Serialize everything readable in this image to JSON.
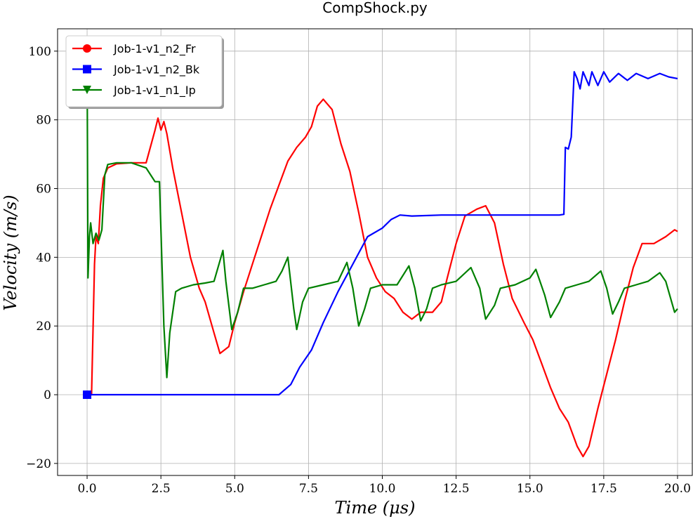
{
  "chart_data": {
    "type": "line",
    "title": "CompShock.py",
    "xlabel": "Time (μs)",
    "ylabel": "Velocity (m/s)",
    "xlim": [
      -1.0,
      20.5
    ],
    "ylim": [
      -23.5,
      106.5
    ],
    "xticks": [
      0.0,
      2.5,
      5.0,
      7.5,
      10.0,
      12.5,
      15.0,
      17.5,
      20.0
    ],
    "xtick_labels": [
      "0.0",
      "2.5",
      "5.0",
      "7.5",
      "10.0",
      "12.5",
      "15.0",
      "17.5",
      "20.0"
    ],
    "yticks": [
      -20,
      0,
      20,
      40,
      60,
      80,
      100
    ],
    "ytick_labels": [
      "−20",
      "0",
      "20",
      "40",
      "60",
      "80",
      "100"
    ],
    "grid": true,
    "legend_position": "top-left",
    "series": [
      {
        "name": "Job-1-v1_n2_Fr",
        "color": "#ff0000",
        "marker": "circle",
        "points": [
          [
            0,
            0
          ],
          [
            0.15,
            0
          ],
          [
            0.25,
            38
          ],
          [
            0.3,
            46
          ],
          [
            0.38,
            44
          ],
          [
            0.45,
            55
          ],
          [
            0.55,
            63
          ],
          [
            0.7,
            66
          ],
          [
            1.0,
            67.2
          ],
          [
            1.5,
            67.5
          ],
          [
            2.0,
            67.5
          ],
          [
            2.3,
            77
          ],
          [
            2.4,
            80.5
          ],
          [
            2.5,
            77
          ],
          [
            2.6,
            79.5
          ],
          [
            2.7,
            76
          ],
          [
            2.9,
            66
          ],
          [
            3.2,
            53
          ],
          [
            3.5,
            40
          ],
          [
            3.8,
            31
          ],
          [
            4.0,
            27
          ],
          [
            4.3,
            18
          ],
          [
            4.5,
            12
          ],
          [
            4.8,
            14
          ],
          [
            5.0,
            21
          ],
          [
            5.3,
            30
          ],
          [
            5.6,
            38
          ],
          [
            5.9,
            46
          ],
          [
            6.2,
            54
          ],
          [
            6.5,
            61
          ],
          [
            6.8,
            68
          ],
          [
            7.1,
            72
          ],
          [
            7.4,
            75
          ],
          [
            7.6,
            78
          ],
          [
            7.8,
            84
          ],
          [
            8.0,
            86
          ],
          [
            8.3,
            83
          ],
          [
            8.6,
            73
          ],
          [
            8.9,
            65
          ],
          [
            9.2,
            53
          ],
          [
            9.5,
            40
          ],
          [
            9.8,
            34
          ],
          [
            10.1,
            30
          ],
          [
            10.4,
            28
          ],
          [
            10.7,
            24
          ],
          [
            11.0,
            22
          ],
          [
            11.3,
            24
          ],
          [
            11.7,
            24
          ],
          [
            12.0,
            27
          ],
          [
            12.2,
            34
          ],
          [
            12.5,
            44
          ],
          [
            12.8,
            52
          ],
          [
            13.0,
            53
          ],
          [
            13.2,
            54
          ],
          [
            13.5,
            55
          ],
          [
            13.8,
            50
          ],
          [
            14.1,
            38
          ],
          [
            14.4,
            28
          ],
          [
            14.8,
            21
          ],
          [
            15.1,
            16
          ],
          [
            15.4,
            9
          ],
          [
            15.7,
            2
          ],
          [
            16.0,
            -4
          ],
          [
            16.3,
            -8
          ],
          [
            16.6,
            -15
          ],
          [
            16.8,
            -18
          ],
          [
            17.0,
            -15
          ],
          [
            17.3,
            -4
          ],
          [
            17.6,
            6
          ],
          [
            17.9,
            16
          ],
          [
            18.2,
            27
          ],
          [
            18.5,
            37
          ],
          [
            18.8,
            44
          ],
          [
            19.2,
            44
          ],
          [
            19.6,
            46
          ],
          [
            19.9,
            48
          ],
          [
            20.0,
            47.5
          ]
        ]
      },
      {
        "name": "Job-1-v1_n2_Bk",
        "color": "#0000ff",
        "marker": "square",
        "points": [
          [
            0,
            0
          ],
          [
            6.5,
            0
          ],
          [
            6.9,
            3
          ],
          [
            7.2,
            8
          ],
          [
            7.6,
            13
          ],
          [
            8.0,
            21
          ],
          [
            8.5,
            30
          ],
          [
            9.0,
            38
          ],
          [
            9.5,
            46
          ],
          [
            10.0,
            48.5
          ],
          [
            10.3,
            51
          ],
          [
            10.6,
            52.3
          ],
          [
            11.0,
            52
          ],
          [
            12.0,
            52.3
          ],
          [
            13.0,
            52.3
          ],
          [
            14.0,
            52.3
          ],
          [
            15.0,
            52.3
          ],
          [
            16.0,
            52.3
          ],
          [
            16.15,
            52.5
          ],
          [
            16.2,
            72
          ],
          [
            16.3,
            71.5
          ],
          [
            16.4,
            75
          ],
          [
            16.5,
            94
          ],
          [
            16.6,
            92
          ],
          [
            16.7,
            89
          ],
          [
            16.8,
            94
          ],
          [
            16.9,
            92
          ],
          [
            17.0,
            90
          ],
          [
            17.1,
            94
          ],
          [
            17.3,
            90
          ],
          [
            17.5,
            94
          ],
          [
            17.7,
            91
          ],
          [
            18.0,
            93.5
          ],
          [
            18.3,
            91.5
          ],
          [
            18.6,
            93.5
          ],
          [
            19.0,
            92
          ],
          [
            19.4,
            93.5
          ],
          [
            19.7,
            92.5
          ],
          [
            20.0,
            92
          ]
        ]
      },
      {
        "name": "Job-1-v1_n1_Ip",
        "color": "#008000",
        "marker": "triangle-down",
        "points": [
          [
            0,
            101
          ],
          [
            0.03,
            34
          ],
          [
            0.08,
            46
          ],
          [
            0.12,
            50
          ],
          [
            0.2,
            44
          ],
          [
            0.3,
            47
          ],
          [
            0.4,
            45
          ],
          [
            0.5,
            48
          ],
          [
            0.6,
            64
          ],
          [
            0.7,
            67
          ],
          [
            1.0,
            67.5
          ],
          [
            1.5,
            67.5
          ],
          [
            2.0,
            66
          ],
          [
            2.3,
            62
          ],
          [
            2.45,
            62
          ],
          [
            2.6,
            20
          ],
          [
            2.7,
            5
          ],
          [
            2.8,
            18
          ],
          [
            3.0,
            30
          ],
          [
            3.2,
            31
          ],
          [
            3.6,
            32
          ],
          [
            4.0,
            32.5
          ],
          [
            4.3,
            33
          ],
          [
            4.5,
            39
          ],
          [
            4.6,
            42
          ],
          [
            4.7,
            33
          ],
          [
            4.9,
            19
          ],
          [
            5.1,
            24
          ],
          [
            5.3,
            31
          ],
          [
            5.6,
            31
          ],
          [
            6.0,
            32
          ],
          [
            6.4,
            33
          ],
          [
            6.6,
            36
          ],
          [
            6.8,
            40
          ],
          [
            7.0,
            25
          ],
          [
            7.1,
            19
          ],
          [
            7.3,
            27
          ],
          [
            7.5,
            31
          ],
          [
            8.0,
            32
          ],
          [
            8.5,
            33
          ],
          [
            8.8,
            38.5
          ],
          [
            9.0,
            31
          ],
          [
            9.2,
            20
          ],
          [
            9.4,
            25
          ],
          [
            9.6,
            31
          ],
          [
            10.0,
            32
          ],
          [
            10.5,
            32
          ],
          [
            10.9,
            37.5
          ],
          [
            11.1,
            31
          ],
          [
            11.3,
            21.5
          ],
          [
            11.5,
            25
          ],
          [
            11.7,
            31
          ],
          [
            12.0,
            32
          ],
          [
            12.5,
            33
          ],
          [
            13.0,
            37
          ],
          [
            13.3,
            31
          ],
          [
            13.5,
            22
          ],
          [
            13.8,
            26
          ],
          [
            14.0,
            31
          ],
          [
            14.5,
            32
          ],
          [
            15.0,
            34
          ],
          [
            15.2,
            36.5
          ],
          [
            15.5,
            29
          ],
          [
            15.7,
            22.5
          ],
          [
            16.0,
            27
          ],
          [
            16.2,
            31
          ],
          [
            16.6,
            32
          ],
          [
            17.0,
            33
          ],
          [
            17.4,
            36
          ],
          [
            17.6,
            31
          ],
          [
            17.8,
            23.5
          ],
          [
            18.0,
            27
          ],
          [
            18.2,
            31
          ],
          [
            18.6,
            32
          ],
          [
            19.0,
            33
          ],
          [
            19.4,
            35.5
          ],
          [
            19.6,
            33
          ],
          [
            19.8,
            27
          ],
          [
            19.9,
            24
          ],
          [
            20.0,
            25
          ]
        ]
      }
    ]
  }
}
